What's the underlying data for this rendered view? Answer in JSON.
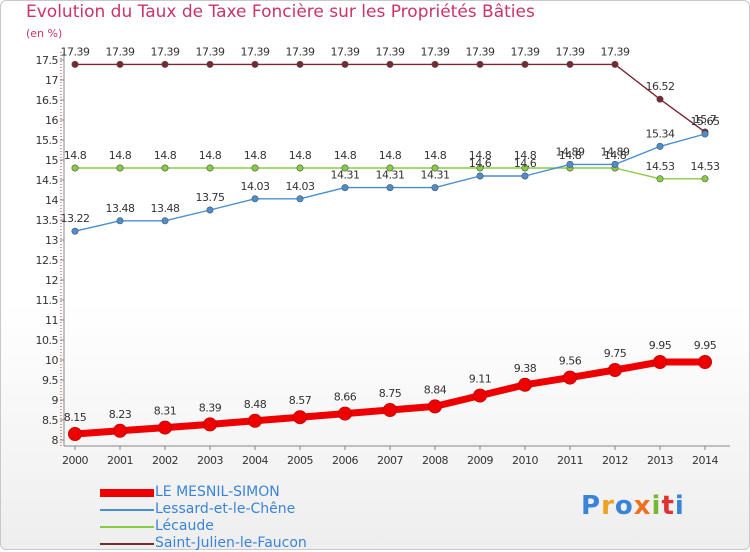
{
  "title": "Evolution du Taux de Taxe Foncière sur les Propriétés Bâties",
  "unit_label": "(en %)",
  "logo": {
    "text": "Proxiti",
    "colors": [
      "#3a84d8",
      "#f0a020",
      "#3a84d8",
      "#f07020",
      "#78b830",
      "#e03030",
      "#3a84d8"
    ]
  },
  "chart_data": {
    "type": "line",
    "title": "Evolution du Taux de Taxe Foncière sur les Propriétés Bâties",
    "ylabel": "(en %)",
    "xlabel": "",
    "ylim": [
      8,
      17.5
    ],
    "yticks": [
      "8",
      "8.5",
      "9",
      "9.5",
      "10",
      "10.5",
      "11",
      "11.5",
      "12",
      "12.5",
      "13",
      "13.5",
      "14",
      "14.5",
      "15",
      "15.5",
      "16",
      "16.5",
      "17",
      "17.5"
    ],
    "x": [
      "2000",
      "2001",
      "2002",
      "2003",
      "2004",
      "2005",
      "2006",
      "2007",
      "2008",
      "2009",
      "2010",
      "2011",
      "2012",
      "2013",
      "2014"
    ],
    "grid": false,
    "legend": "bottom-left",
    "series": [
      {
        "name": "LE MESNIL-SIMON",
        "color": "#ee0000",
        "values": [
          8.15,
          8.23,
          8.31,
          8.39,
          8.48,
          8.57,
          8.66,
          8.75,
          8.84,
          9.11,
          9.38,
          9.56,
          9.75,
          9.95,
          9.95
        ],
        "labels": [
          "8.15",
          "8.23",
          "8.31",
          "8.39",
          "8.48",
          "8.57",
          "8.66",
          "8.75",
          "8.84",
          "9.11",
          "9.38",
          "9.56",
          "9.75",
          "9.95",
          "9.95"
        ]
      },
      {
        "name": "Lessard-et-le-Chêne",
        "color": "#4a8ed0",
        "values": [
          13.22,
          13.48,
          13.48,
          13.75,
          14.03,
          14.03,
          14.31,
          14.31,
          14.31,
          14.6,
          14.6,
          14.89,
          14.89,
          15.34,
          15.65
        ],
        "labels": [
          "13.22",
          "13.48",
          "13.48",
          "13.75",
          "14.03",
          "14.03",
          "14.31",
          "14.31",
          "14.31",
          "14.6",
          "14.6",
          "14.89",
          "14.89",
          "15.34",
          "15.65"
        ]
      },
      {
        "name": "Lécaude",
        "color": "#88cc44",
        "values": [
          14.8,
          14.8,
          14.8,
          14.8,
          14.8,
          14.8,
          14.8,
          14.8,
          14.8,
          14.8,
          14.8,
          14.8,
          14.8,
          14.53,
          14.53
        ],
        "labels": [
          "14.8",
          "14.8",
          "14.8",
          "14.8",
          "14.8",
          "14.8",
          "14.8",
          "14.8",
          "14.8",
          "14.8",
          "14.8",
          "14.8",
          "14.8",
          "14.53",
          "14.53"
        ]
      },
      {
        "name": "Saint-Julien-le-Faucon",
        "color": "#7a2830",
        "values": [
          17.39,
          17.39,
          17.39,
          17.39,
          17.39,
          17.39,
          17.39,
          17.39,
          17.39,
          17.39,
          17.39,
          17.39,
          17.39,
          16.52,
          15.7
        ],
        "labels": [
          "17.39",
          "17.39",
          "17.39",
          "17.39",
          "17.39",
          "17.39",
          "17.39",
          "17.39",
          "17.39",
          "17.39",
          "17.39",
          "17.39",
          "17.39",
          "16.52",
          "15.7"
        ]
      }
    ]
  }
}
